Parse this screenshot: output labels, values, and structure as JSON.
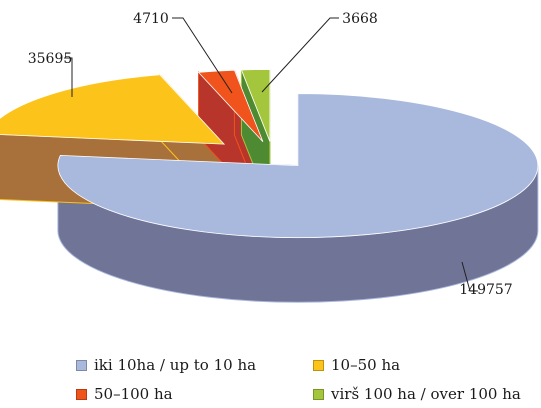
{
  "chart_data": {
    "type": "pie",
    "three_d": true,
    "exploded": true,
    "title": "",
    "categories": [
      "iki 10ha / up to 10 ha",
      "10–50 ha",
      "50–100 ha",
      "virš 100 ha / over 100 ha"
    ],
    "values": [
      149757,
      35695,
      4710,
      3668
    ],
    "data_labels": [
      "149757",
      "35695",
      "4710",
      "3668"
    ],
    "colors": {
      "top": [
        "#a9b8dd",
        "#fcc31a",
        "#f0531b",
        "#a3c63d"
      ],
      "side": [
        "#707497",
        "#a8703a",
        "#b8352b",
        "#4e8a32"
      ]
    },
    "legend_position": "bottom",
    "grid": false
  }
}
